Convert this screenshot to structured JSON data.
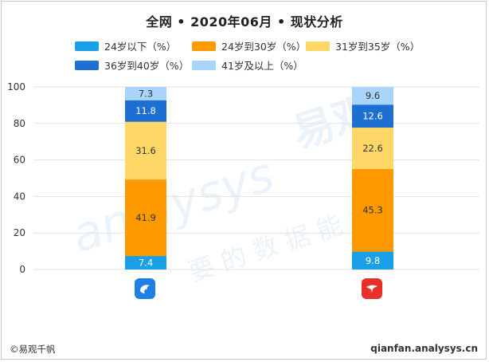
{
  "colors": {
    "c0": "#1aa0e8",
    "c1": "#ff9900",
    "c2": "#ffd766",
    "c3": "#1d6fd2",
    "c4": "#a9d4fb"
  },
  "apps": [
    {
      "icon": "blue-bird-app-icon",
      "color": "#1e7fe6"
    },
    {
      "icon": "red-bird-app-icon",
      "color": "#e8302b"
    }
  ],
  "footer": {
    "left": "©易观千帆",
    "right": "qianfan.analysys.cn"
  },
  "chart_data": {
    "type": "bar",
    "stacked": true,
    "title": "全网 • 2020年06月 • 现状分析",
    "categories": [
      "",
      ""
    ],
    "series": [
      {
        "name": "24岁以下（%）",
        "values": [
          7.4,
          9.8
        ]
      },
      {
        "name": "24岁到30岁（%）",
        "values": [
          41.9,
          45.3
        ]
      },
      {
        "name": "31岁到35岁（%）",
        "values": [
          31.6,
          22.6
        ]
      },
      {
        "name": "36岁到40岁（%）",
        "values": [
          11.8,
          12.6
        ]
      },
      {
        "name": "41岁及以上（%）",
        "values": [
          7.3,
          9.6
        ]
      }
    ],
    "yticks": [
      0,
      20,
      40,
      60,
      80,
      100
    ],
    "ylim": [
      0,
      100
    ],
    "grid": true,
    "legend": "top"
  }
}
